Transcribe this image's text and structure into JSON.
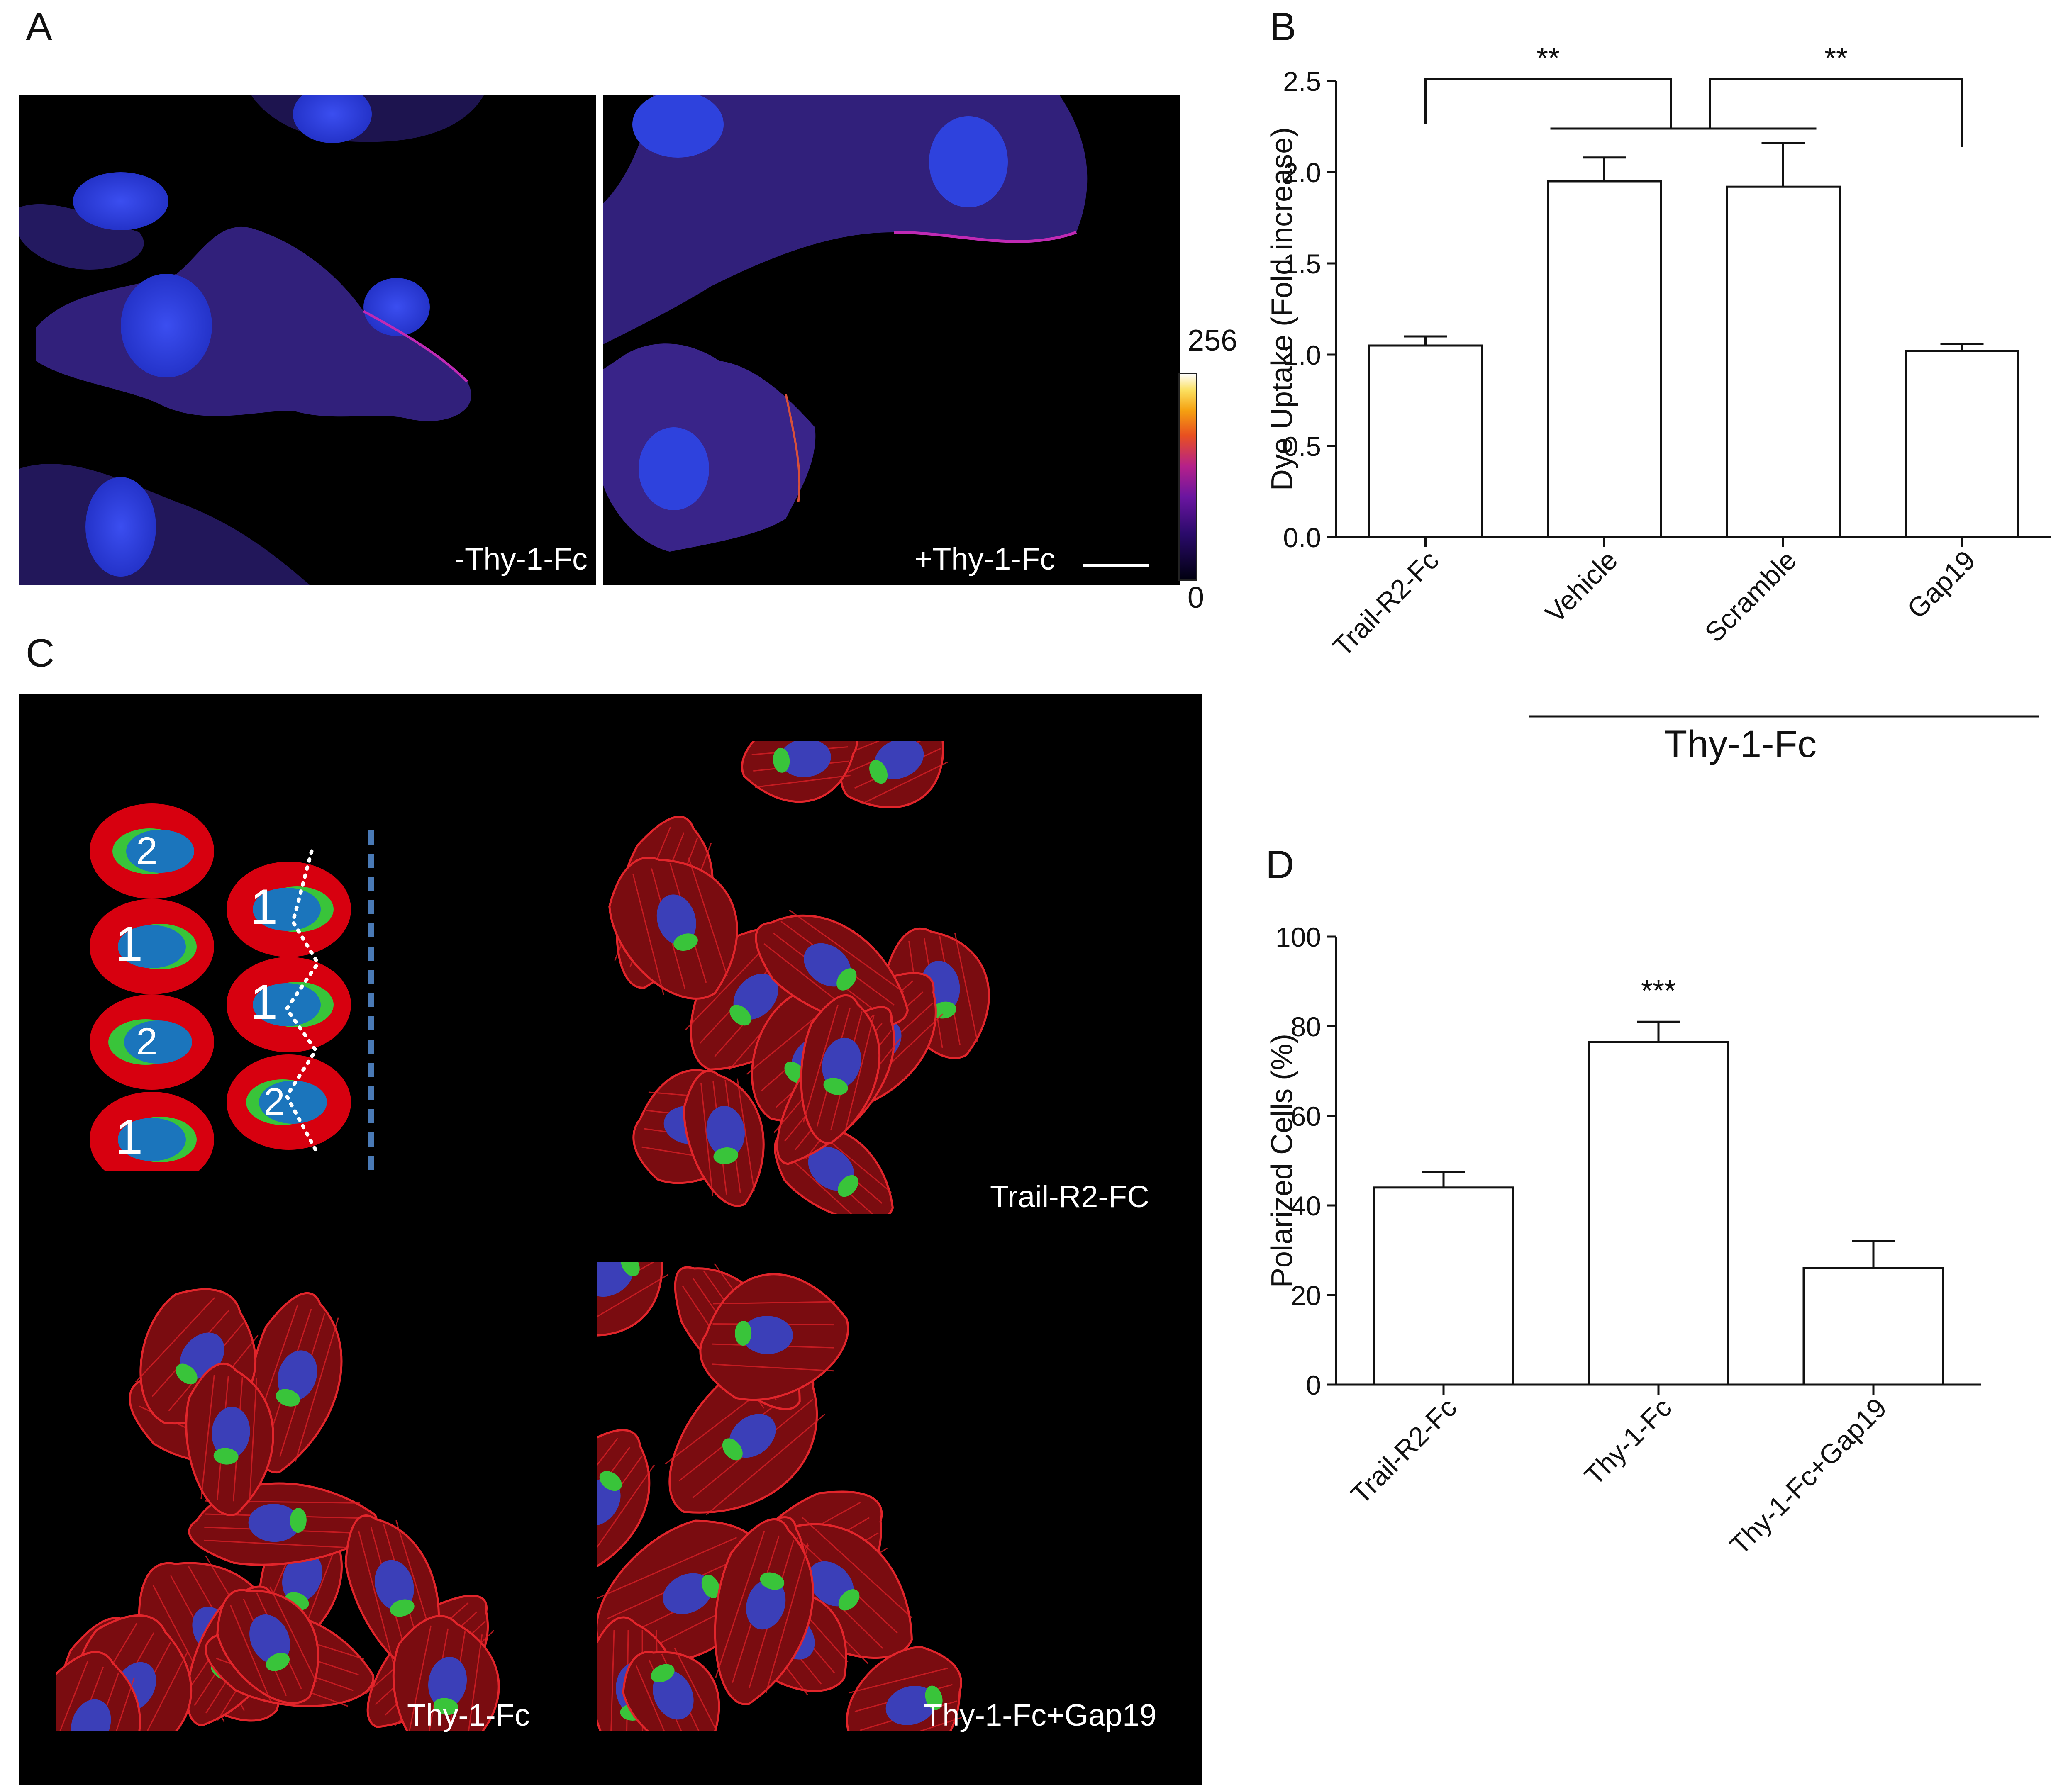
{
  "panels": {
    "a": {
      "letter": "A",
      "left_label": "-Thy-1-Fc",
      "right_label": "+Thy-1-Fc",
      "colorbar_max": "256",
      "colorbar_min": "0"
    },
    "b": {
      "letter": "B"
    },
    "c": {
      "letter": "C",
      "schematic_numbers": [
        "2",
        "1",
        "1",
        "2",
        "1",
        "2",
        "1"
      ],
      "labels": {
        "top_right": "Trail-R2-FC",
        "bottom_left": "Thy-1-Fc",
        "bottom_right": "Thy-1-Fc+Gap19"
      }
    },
    "d": {
      "letter": "D"
    }
  },
  "chart_data": [
    {
      "id": "B",
      "type": "bar",
      "categories": [
        "Trail-R2-Fc",
        "Vehicle",
        "Scramble",
        "Gap19"
      ],
      "values": [
        1.05,
        1.95,
        1.92,
        1.02
      ],
      "errors": [
        0.05,
        0.13,
        0.24,
        0.04
      ],
      "ylabel": "Dye Uptake (Fold increase)",
      "ylim": [
        0,
        2.5
      ],
      "yticks": [
        "0.0",
        "0.5",
        "1.0",
        "1.5",
        "2.0",
        "2.5"
      ],
      "yticks_values": [
        0,
        0.5,
        1.0,
        1.5,
        2.0,
        2.5
      ],
      "group_label": "Thy-1-Fc",
      "significance": [
        "**",
        "**"
      ]
    },
    {
      "id": "D",
      "type": "bar",
      "categories": [
        "Trail-R2-Fc",
        "Thy-1-Fc",
        "Thy-1-Fc+Gap19"
      ],
      "values": [
        44,
        76.5,
        26
      ],
      "errors": [
        3.5,
        4.5,
        6
      ],
      "ylabel": "Polarized Cells (%)",
      "ylim": [
        0,
        100
      ],
      "yticks": [
        "0",
        "20",
        "40",
        "60",
        "80",
        "100"
      ],
      "yticks_values": [
        0,
        20,
        40,
        60,
        80,
        100
      ],
      "significance": [
        "***"
      ]
    }
  ],
  "colors": {
    "nucleus_blue": "#2a3fd6",
    "cytoplasm_purple": "#4a2ea8",
    "edge_magenta": "#d02cc0",
    "actin_red": "#d81f26",
    "golgi_green": "#39c43a",
    "schematic_red": "#d7000f",
    "schematic_blue": "#1b75bc",
    "dash_blue": "#4a7ab6"
  }
}
